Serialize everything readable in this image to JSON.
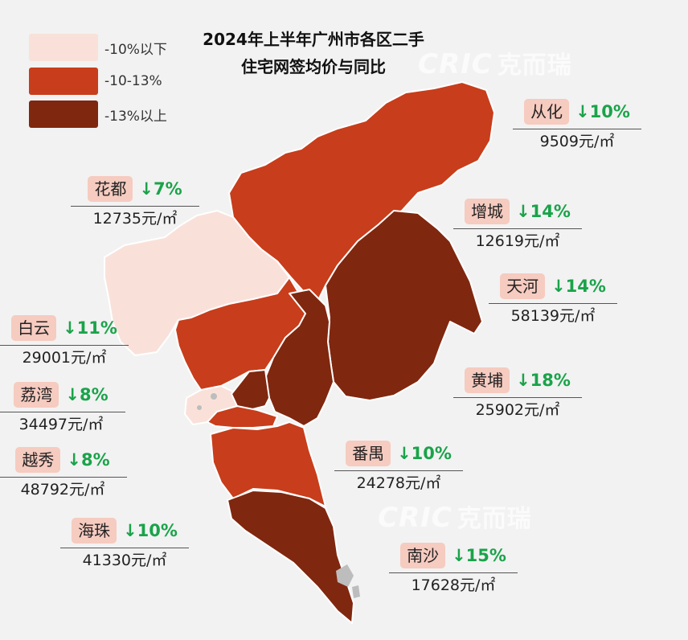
{
  "title_line1": "2024年上半年广州市各区二手",
  "title_line2": "住宅网签均价与同比",
  "legend": [
    {
      "label": "-10%以下",
      "color": "#f9e1da"
    },
    {
      "label": "-10-13%",
      "color": "#c83d1b"
    },
    {
      "label": "-13%以上",
      "color": "#80270f"
    }
  ],
  "watermark": {
    "brand": "CRIC",
    "cn": "克而瑞"
  },
  "colors": {
    "light": "#f9e1da",
    "mid": "#c83d1b",
    "dark": "#80270f",
    "change_green": "#1aa34a",
    "label_bg": "#f6cbc0"
  },
  "districts": [
    {
      "id": "conghua",
      "name": "从化",
      "change": "↓10%",
      "price": "9509元/㎡",
      "category": "-10-13%"
    },
    {
      "id": "huadu",
      "name": "花都",
      "change": "↓7%",
      "price": "12735元/㎡",
      "category": "-10%以下"
    },
    {
      "id": "zengcheng",
      "name": "增城",
      "change": "↓14%",
      "price": "12619元/㎡",
      "category": "-13%以上"
    },
    {
      "id": "tianhe",
      "name": "天河",
      "change": "↓14%",
      "price": "58139元/㎡",
      "category": "-13%以上"
    },
    {
      "id": "baiyun",
      "name": "白云",
      "change": "↓11%",
      "price": "29001元/㎡",
      "category": "-10-13%"
    },
    {
      "id": "huangpu",
      "name": "黄埔",
      "change": "↓18%",
      "price": "25902元/㎡",
      "category": "-13%以上"
    },
    {
      "id": "liwan",
      "name": "荔湾",
      "change": "↓8%",
      "price": "34497元/㎡",
      "category": "-10%以下"
    },
    {
      "id": "yuexiu",
      "name": "越秀",
      "change": "↓8%",
      "price": "48792元/㎡",
      "category": "-10%以下"
    },
    {
      "id": "panyu",
      "name": "番禺",
      "change": "↓10%",
      "price": "24278元/㎡",
      "category": "-10-13%"
    },
    {
      "id": "haizhu",
      "name": "海珠",
      "change": "↓10%",
      "price": "41330元/㎡",
      "category": "-10-13%"
    },
    {
      "id": "nansha",
      "name": "南沙",
      "change": "↓15%",
      "price": "17628元/㎡",
      "category": "-13%以上"
    }
  ]
}
